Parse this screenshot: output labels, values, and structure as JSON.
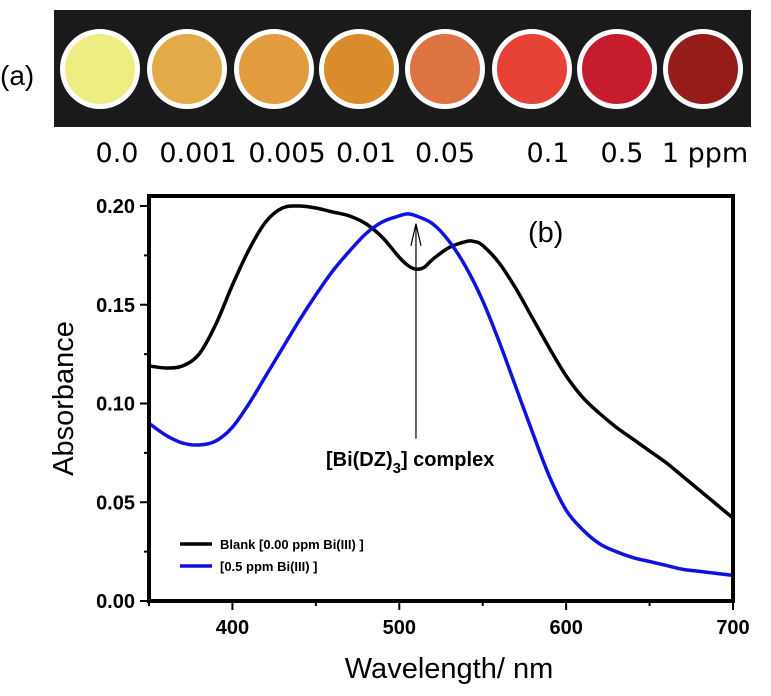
{
  "panel_a": {
    "label": "(a)",
    "wells": [
      {
        "label": "0.0",
        "color": "#eded82"
      },
      {
        "label": "0.001",
        "color": "#e3ab48"
      },
      {
        "label": "0.005",
        "color": "#e29b3e"
      },
      {
        "label": "0.01",
        "color": "#da8b2c"
      },
      {
        "label": "0.05",
        "color": "#dd7242"
      },
      {
        "label": "0.1",
        "color": "#e64236"
      },
      {
        "label": "0.5",
        "color": "#c61c2e"
      },
      {
        "label": "1 ppm",
        "color": "#951c18"
      }
    ]
  },
  "chart_data": {
    "type": "line",
    "panel_label": "(b)",
    "xlabel": "Wavelength/ nm",
    "ylabel": "Absorbance",
    "xlim": [
      350,
      700
    ],
    "ylim": [
      0,
      0.2
    ],
    "xticks": [
      400,
      500,
      600,
      700
    ],
    "yticks": [
      "0.00",
      "0.05",
      "0.10",
      "0.15",
      "0.20"
    ],
    "grid": false,
    "legend_position": "bottom-left",
    "annotation": {
      "text_prefix": "[Bi(DZ)",
      "text_sub": "3",
      "text_suffix": "] complex",
      "x": 510,
      "y": 0.191,
      "label_y": 0.072
    },
    "series": [
      {
        "name": "Blank [0.00 ppm Bi(III) ]",
        "color": "#000000",
        "x": [
          350,
          360,
          370,
          380,
          390,
          400,
          410,
          420,
          430,
          440,
          450,
          460,
          470,
          480,
          490,
          500,
          505,
          510,
          515,
          520,
          530,
          540,
          545,
          550,
          560,
          570,
          580,
          590,
          600,
          610,
          620,
          630,
          640,
          650,
          660,
          670,
          680,
          690,
          700
        ],
        "y": [
          0.119,
          0.118,
          0.119,
          0.125,
          0.14,
          0.16,
          0.178,
          0.192,
          0.199,
          0.2,
          0.199,
          0.197,
          0.195,
          0.191,
          0.184,
          0.174,
          0.17,
          0.168,
          0.169,
          0.173,
          0.179,
          0.182,
          0.182,
          0.18,
          0.171,
          0.158,
          0.143,
          0.128,
          0.114,
          0.103,
          0.095,
          0.088,
          0.082,
          0.076,
          0.07,
          0.063,
          0.056,
          0.049,
          0.042
        ]
      },
      {
        "name": "[0.5 ppm Bi(III) ]",
        "color": "#1010e0",
        "x": [
          350,
          360,
          370,
          380,
          390,
          400,
          410,
          420,
          430,
          440,
          450,
          460,
          470,
          480,
          490,
          500,
          505,
          510,
          520,
          530,
          540,
          550,
          560,
          570,
          580,
          590,
          600,
          610,
          620,
          630,
          640,
          650,
          660,
          670,
          680,
          690,
          700
        ],
        "y": [
          0.09,
          0.084,
          0.08,
          0.079,
          0.081,
          0.088,
          0.1,
          0.114,
          0.128,
          0.142,
          0.155,
          0.167,
          0.177,
          0.186,
          0.192,
          0.195,
          0.196,
          0.195,
          0.191,
          0.182,
          0.169,
          0.152,
          0.131,
          0.108,
          0.085,
          0.063,
          0.046,
          0.036,
          0.029,
          0.025,
          0.022,
          0.02,
          0.018,
          0.016,
          0.015,
          0.014,
          0.013
        ]
      }
    ]
  }
}
